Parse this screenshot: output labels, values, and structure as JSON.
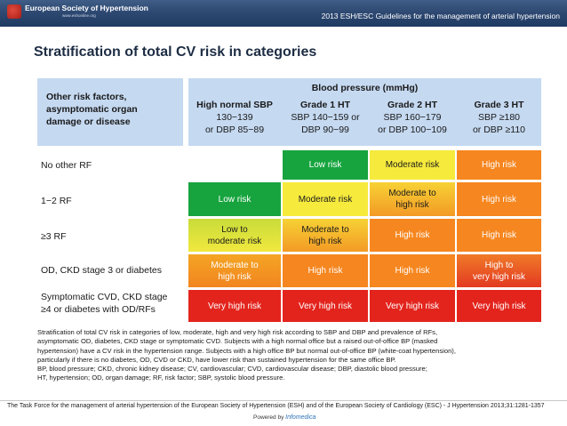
{
  "header": {
    "brand": "European Society of Hypertension",
    "brand_sub": "www.eshonline.org",
    "guidelines": "2013 ESH/ESC Guidelines for the management of arterial hypertension"
  },
  "title": "Stratification of total CV risk in categories",
  "table": {
    "corner_label": [
      "Other risk factors,",
      "asymptomatic organ",
      "damage or disease"
    ],
    "bp_header": "Blood pressure (mmHg)",
    "columns": [
      {
        "l1": "High normal SBP",
        "l2": "130−139",
        "l3": "or DBP 85−89"
      },
      {
        "l1": "Grade 1 HT",
        "l2": "SBP 140−159 or",
        "l3": "DBP 90−99"
      },
      {
        "l1": "Grade 2 HT",
        "l2": "SBP 160−179",
        "l3": "or DBP 100−109"
      },
      {
        "l1": "Grade 3 HT",
        "l2": "SBP ≥180",
        "l3": "or DBP ≥110"
      }
    ],
    "rows": [
      {
        "label": "No other RF",
        "cells": [
          "",
          "Low risk",
          "Moderate risk",
          "High risk"
        ]
      },
      {
        "label": "1−2 RF",
        "cells": [
          "Low risk",
          "Moderate risk",
          "Moderate to high risk",
          "High risk"
        ]
      },
      {
        "label": "≥3 RF",
        "cells": [
          "Low to moderate risk",
          "Moderate to high risk",
          "High risk",
          "High risk"
        ]
      },
      {
        "label": "OD, CKD stage 3 or diabetes",
        "cells": [
          "Moderate to high risk",
          "High risk",
          "High risk",
          "High to very high risk"
        ]
      },
      {
        "label_l1": "Symptomatic CVD, CKD stage",
        "label_l2": "≥4 or diabetes with OD/RFs",
        "cells": [
          "Very high risk",
          "Very high risk",
          "Very high risk",
          "Very high risk"
        ]
      }
    ],
    "cell_lines": {
      "r1c2": [
        "Moderate to",
        "high risk"
      ],
      "r2c0": [
        "Low to",
        "moderate risk"
      ],
      "r2c1": [
        "Moderate to",
        "high risk"
      ],
      "r3c0": [
        "Moderate to",
        "high risk"
      ],
      "r3c3": [
        "High to",
        "very high risk"
      ]
    }
  },
  "caption": [
    "Stratification of total CV risk in categories of low, moderate, high and very high risk according to SBP and DBP and prevalence of RFs,",
    "asymptomatic OD, diabetes, CKD stage or symptomatic CVD. Subjects with a high normal office but a raised out-of-office BP (masked",
    "hypertension) have a CV risk in the hypertension range. Subjects with a high office BP but normal out-of-office BP (white-coat hypertension),",
    "particularly if there is no diabetes, OD, CVD or CKD, have lower risk than sustained hypertension for the same office BP.",
    "BP, blood pressure; CKD, chronic kidney disease; CV, cardiovascular; CVD, cardiovascular disease; DBP, diastolic blood pressure;",
    " HT, hypertension; OD, organ damage; RF, risk factor; SBP, systolic blood pressure."
  ],
  "footer": "The Task Force for the management of arterial hypertension of the European Society of Hypertension (ESH) and of the European Society of Cardiology (ESC) - J Hypertension 2013;31:1281-1357",
  "powered": {
    "label": "Powered by",
    "logo": "Infomedica"
  },
  "colors": {
    "low": "#17a43e",
    "moderate": "#f6ea3d",
    "high": "#f6861f",
    "very_high": "#e3241d",
    "header_blue": "#c5d9f1"
  }
}
